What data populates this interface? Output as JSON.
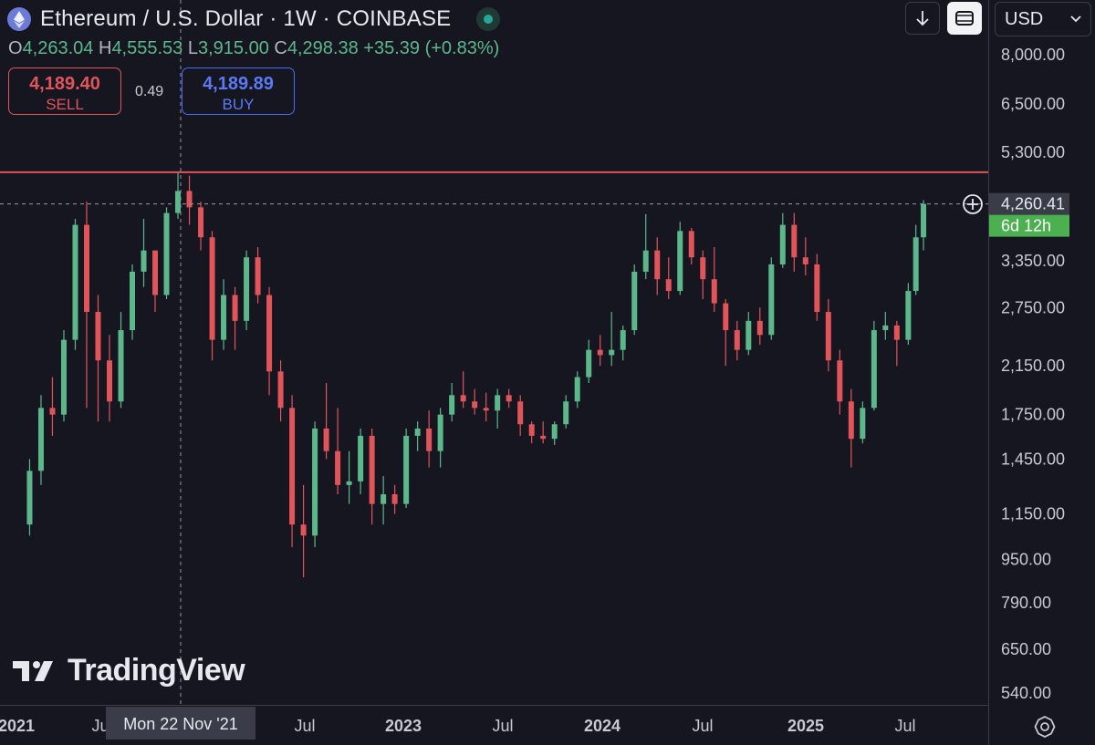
{
  "header": {
    "title": "Ethereum / U.S. Dollar · 1W · COINBASE",
    "icon": "ethereum-logo-icon",
    "status": "market-open",
    "status_color": "#26a69a"
  },
  "ohlc": {
    "o_label": "O",
    "o_value": "4,263.04",
    "h_label": "H",
    "h_value": "4,555.53",
    "l_label": "L",
    "l_value": "3,915.00",
    "c_label": "C",
    "c_value": "4,298.38",
    "change": "+35.39 (+0.83%)"
  },
  "trade": {
    "sell_price": "4,189.40",
    "sell_label": "SELL",
    "spread": "0.49",
    "buy_price": "4,189.89",
    "buy_label": "BUY"
  },
  "toolbar": {
    "download_icon": "arrow-down-icon",
    "fullscreen_icon": "fullscreen-icon",
    "currency": "USD"
  },
  "watermark": "TradingView",
  "settings_icon": "gear-icon",
  "colors": {
    "background": "#161621",
    "up": "#5cb88a",
    "down": "#e0545a",
    "resistance": "#e0545a",
    "price_label_bg": "#3a3d48",
    "countdown_bg": "#4caf50"
  },
  "chart_data": {
    "type": "candlestick",
    "title": "Ethereum / U.S. Dollar · 1W · COINBASE",
    "interval": "1W",
    "y_scale": "log",
    "ylim": [
      500,
      9000
    ],
    "y_ticks": [
      "8,000.00",
      "6,500.00",
      "5,300.00",
      "3,350.00",
      "2,750.00",
      "2,150.00",
      "1,750.00",
      "1,450.00",
      "1,150.00",
      "950.00",
      "790.00",
      "650.00",
      "540.00"
    ],
    "x_ticks": [
      "2021",
      "Jul",
      "Jul",
      "2023",
      "Jul",
      "2024",
      "Jul",
      "2025",
      "Jul"
    ],
    "crosshair_date": "Mon 22 Nov '21",
    "current_price": "4,260.41",
    "current_price_value": 4260.41,
    "countdown": "6d 12h",
    "resistance_level": 4870,
    "grid": false,
    "candles": [
      {
        "date": "2021-02-01",
        "o": 1100,
        "h": 1450,
        "c": 1380,
        "l": 1050
      },
      {
        "date": "2021-02-22",
        "o": 1380,
        "h": 1900,
        "c": 1800,
        "l": 1300
      },
      {
        "date": "2021-03-15",
        "o": 1800,
        "h": 2050,
        "c": 1750,
        "l": 1600
      },
      {
        "date": "2021-04-05",
        "o": 1750,
        "h": 2500,
        "c": 2400,
        "l": 1700
      },
      {
        "date": "2021-04-26",
        "o": 2400,
        "h": 4000,
        "c": 3900,
        "l": 2300
      },
      {
        "date": "2021-05-17",
        "o": 3900,
        "h": 4300,
        "c": 2700,
        "l": 1800
      },
      {
        "date": "2021-06-07",
        "o": 2700,
        "h": 2900,
        "c": 2200,
        "l": 1700
      },
      {
        "date": "2021-06-28",
        "o": 2200,
        "h": 2450,
        "c": 1850,
        "l": 1700
      },
      {
        "date": "2021-07-19",
        "o": 1850,
        "h": 2700,
        "c": 2500,
        "l": 1800
      },
      {
        "date": "2021-08-09",
        "o": 2500,
        "h": 3300,
        "c": 3200,
        "l": 2400
      },
      {
        "date": "2021-08-30",
        "o": 3200,
        "h": 4000,
        "c": 3500,
        "l": 3000
      },
      {
        "date": "2021-09-20",
        "o": 3500,
        "h": 3500,
        "c": 2900,
        "l": 2700
      },
      {
        "date": "2021-10-11",
        "o": 2900,
        "h": 4200,
        "c": 4100,
        "l": 2850
      },
      {
        "date": "2021-11-01",
        "o": 4100,
        "h": 4870,
        "c": 4500,
        "l": 4000
      },
      {
        "date": "2021-11-22",
        "o": 4500,
        "h": 4800,
        "c": 4200,
        "l": 3900
      },
      {
        "date": "2021-12-13",
        "o": 4200,
        "h": 4300,
        "c": 3700,
        "l": 3500
      },
      {
        "date": "2022-01-03",
        "o": 3700,
        "h": 3800,
        "c": 2400,
        "l": 2200
      },
      {
        "date": "2022-01-24",
        "o": 2400,
        "h": 3100,
        "c": 2900,
        "l": 2300
      },
      {
        "date": "2022-02-14",
        "o": 2900,
        "h": 3000,
        "c": 2600,
        "l": 2300
      },
      {
        "date": "2022-03-07",
        "o": 2600,
        "h": 3500,
        "c": 3400,
        "l": 2500
      },
      {
        "date": "2022-03-28",
        "o": 3400,
        "h": 3550,
        "c": 2900,
        "l": 2800
      },
      {
        "date": "2022-04-18",
        "o": 2900,
        "h": 3000,
        "c": 2100,
        "l": 1900
      },
      {
        "date": "2022-05-09",
        "o": 2100,
        "h": 2200,
        "c": 1800,
        "l": 1700
      },
      {
        "date": "2022-05-30",
        "o": 1800,
        "h": 1900,
        "c": 1100,
        "l": 1000
      },
      {
        "date": "2022-06-20",
        "o": 1100,
        "h": 1300,
        "c": 1050,
        "l": 880
      },
      {
        "date": "2022-07-11",
        "o": 1050,
        "h": 1700,
        "c": 1650,
        "l": 1000
      },
      {
        "date": "2022-08-01",
        "o": 1650,
        "h": 2000,
        "c": 1500,
        "l": 1450
      },
      {
        "date": "2022-08-22",
        "o": 1500,
        "h": 1800,
        "c": 1300,
        "l": 1250
      },
      {
        "date": "2022-09-12",
        "o": 1300,
        "h": 1500,
        "c": 1320,
        "l": 1200
      },
      {
        "date": "2022-10-03",
        "o": 1320,
        "h": 1650,
        "c": 1600,
        "l": 1250
      },
      {
        "date": "2022-10-24",
        "o": 1600,
        "h": 1650,
        "c": 1200,
        "l": 1100
      },
      {
        "date": "2022-11-14",
        "o": 1200,
        "h": 1350,
        "c": 1250,
        "l": 1100
      },
      {
        "date": "2022-12-05",
        "o": 1250,
        "h": 1300,
        "c": 1200,
        "l": 1150
      },
      {
        "date": "2022-12-26",
        "o": 1200,
        "h": 1650,
        "c": 1600,
        "l": 1180
      },
      {
        "date": "2023-01-16",
        "o": 1600,
        "h": 1700,
        "c": 1650,
        "l": 1500
      },
      {
        "date": "2023-02-06",
        "o": 1650,
        "h": 1780,
        "c": 1500,
        "l": 1400
      },
      {
        "date": "2023-02-27",
        "o": 1500,
        "h": 1800,
        "c": 1750,
        "l": 1400
      },
      {
        "date": "2023-03-20",
        "o": 1750,
        "h": 2000,
        "c": 1900,
        "l": 1700
      },
      {
        "date": "2023-04-10",
        "o": 1900,
        "h": 2100,
        "c": 1850,
        "l": 1800
      },
      {
        "date": "2023-05-01",
        "o": 1850,
        "h": 1950,
        "c": 1800,
        "l": 1750
      },
      {
        "date": "2023-05-22",
        "o": 1800,
        "h": 1920,
        "c": 1780,
        "l": 1700
      },
      {
        "date": "2023-06-12",
        "o": 1780,
        "h": 1950,
        "c": 1900,
        "l": 1650
      },
      {
        "date": "2023-07-03",
        "o": 1900,
        "h": 1950,
        "c": 1850,
        "l": 1800
      },
      {
        "date": "2023-07-24",
        "o": 1850,
        "h": 1900,
        "c": 1680,
        "l": 1600
      },
      {
        "date": "2023-08-14",
        "o": 1680,
        "h": 1700,
        "c": 1600,
        "l": 1550
      },
      {
        "date": "2023-09-04",
        "o": 1600,
        "h": 1700,
        "c": 1580,
        "l": 1550
      },
      {
        "date": "2023-09-25",
        "o": 1580,
        "h": 1700,
        "c": 1680,
        "l": 1540
      },
      {
        "date": "2023-10-16",
        "o": 1680,
        "h": 1900,
        "c": 1850,
        "l": 1650
      },
      {
        "date": "2023-11-06",
        "o": 1850,
        "h": 2100,
        "c": 2050,
        "l": 1800
      },
      {
        "date": "2023-11-27",
        "o": 2050,
        "h": 2400,
        "c": 2300,
        "l": 2000
      },
      {
        "date": "2023-12-18",
        "o": 2300,
        "h": 2450,
        "c": 2250,
        "l": 2150
      },
      {
        "date": "2024-01-08",
        "o": 2250,
        "h": 2700,
        "c": 2300,
        "l": 2150
      },
      {
        "date": "2024-01-29",
        "o": 2300,
        "h": 2550,
        "c": 2500,
        "l": 2200
      },
      {
        "date": "2024-02-19",
        "o": 2500,
        "h": 3300,
        "c": 3200,
        "l": 2450
      },
      {
        "date": "2024-03-11",
        "o": 3200,
        "h": 4080,
        "c": 3500,
        "l": 3100
      },
      {
        "date": "2024-04-01",
        "o": 3500,
        "h": 3700,
        "c": 3100,
        "l": 2900
      },
      {
        "date": "2024-04-22",
        "o": 3100,
        "h": 3400,
        "c": 2950,
        "l": 2850
      },
      {
        "date": "2024-05-13",
        "o": 2950,
        "h": 3950,
        "c": 3800,
        "l": 2900
      },
      {
        "date": "2024-06-03",
        "o": 3800,
        "h": 3850,
        "c": 3400,
        "l": 3300
      },
      {
        "date": "2024-06-24",
        "o": 3400,
        "h": 3500,
        "c": 3100,
        "l": 2850
      },
      {
        "date": "2024-07-15",
        "o": 3100,
        "h": 3550,
        "c": 2800,
        "l": 2700
      },
      {
        "date": "2024-08-05",
        "o": 2800,
        "h": 2850,
        "c": 2500,
        "l": 2150
      },
      {
        "date": "2024-08-26",
        "o": 2500,
        "h": 2600,
        "c": 2300,
        "l": 2200
      },
      {
        "date": "2024-09-16",
        "o": 2300,
        "h": 2700,
        "c": 2600,
        "l": 2250
      },
      {
        "date": "2024-10-07",
        "o": 2600,
        "h": 2750,
        "c": 2450,
        "l": 2350
      },
      {
        "date": "2024-10-28",
        "o": 2450,
        "h": 3400,
        "c": 3300,
        "l": 2400
      },
      {
        "date": "2024-11-18",
        "o": 3300,
        "h": 4100,
        "c": 3900,
        "l": 3250
      },
      {
        "date": "2024-12-09",
        "o": 3900,
        "h": 4100,
        "c": 3400,
        "l": 3200
      },
      {
        "date": "2024-12-30",
        "o": 3400,
        "h": 3700,
        "c": 3300,
        "l": 3150
      },
      {
        "date": "2025-01-20",
        "o": 3300,
        "h": 3450,
        "c": 2700,
        "l": 2600
      },
      {
        "date": "2025-02-10",
        "o": 2700,
        "h": 2850,
        "c": 2200,
        "l": 2100
      },
      {
        "date": "2025-03-03",
        "o": 2200,
        "h": 2300,
        "c": 1850,
        "l": 1750
      },
      {
        "date": "2025-03-24",
        "o": 1850,
        "h": 1950,
        "c": 1580,
        "l": 1400
      },
      {
        "date": "2025-04-14",
        "o": 1580,
        "h": 1850,
        "c": 1800,
        "l": 1550
      },
      {
        "date": "2025-05-05",
        "o": 1800,
        "h": 2600,
        "c": 2500,
        "l": 1780
      },
      {
        "date": "2025-05-26",
        "o": 2500,
        "h": 2700,
        "c": 2550,
        "l": 2400
      },
      {
        "date": "2025-06-16",
        "o": 2550,
        "h": 2600,
        "c": 2400,
        "l": 2150
      },
      {
        "date": "2025-07-07",
        "o": 2400,
        "h": 3050,
        "c": 2950,
        "l": 2350
      },
      {
        "date": "2025-07-21",
        "o": 2950,
        "h": 3900,
        "c": 3700,
        "l": 2900
      },
      {
        "date": "2025-08-04",
        "o": 3700,
        "h": 4330,
        "c": 4260.41,
        "l": 3500
      }
    ]
  }
}
